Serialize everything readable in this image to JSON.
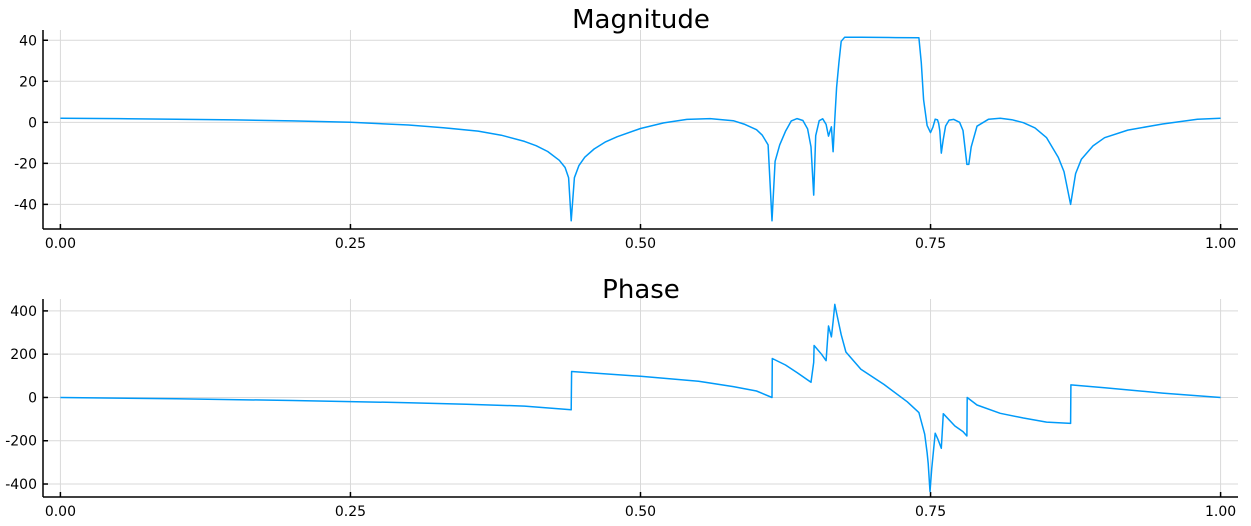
{
  "colors": {
    "trace": "#009af9",
    "grid": "#d9d9d9",
    "axis": "#000000"
  },
  "chart_data": [
    {
      "type": "line",
      "title": "Magnitude",
      "xlabel": "",
      "ylabel": "",
      "xlim": [
        -0.015,
        1.015
      ],
      "ylim": [
        -52,
        45
      ],
      "xticks": [
        0,
        0.25,
        0.5,
        0.75,
        1
      ],
      "xtick_labels": [
        "0.00",
        "0.25",
        "0.50",
        "0.75",
        "1.00"
      ],
      "yticks": [
        -40,
        -20,
        0,
        20,
        40
      ],
      "ytick_labels": [
        "-40",
        "-20",
        "0",
        "20",
        "40"
      ],
      "grid": true,
      "x": [
        0,
        0.05,
        0.1,
        0.15,
        0.2,
        0.25,
        0.3,
        0.33,
        0.36,
        0.38,
        0.4,
        0.41,
        0.42,
        0.43,
        0.435,
        0.438,
        0.4403,
        0.443,
        0.447,
        0.452,
        0.46,
        0.47,
        0.48,
        0.5,
        0.52,
        0.54,
        0.56,
        0.58,
        0.59,
        0.6,
        0.605,
        0.61,
        0.6133,
        0.616,
        0.62,
        0.625,
        0.63,
        0.635,
        0.64,
        0.644,
        0.647,
        0.6493,
        0.651,
        0.654,
        0.657,
        0.66,
        0.662,
        0.6645,
        0.666,
        0.6675,
        0.669,
        0.671,
        0.673,
        0.676,
        0.69,
        0.72,
        0.74,
        0.742,
        0.744,
        0.747,
        0.75,
        0.752,
        0.754,
        0.756,
        0.757,
        0.758,
        0.7593,
        0.761,
        0.763,
        0.766,
        0.77,
        0.775,
        0.778,
        0.7813,
        0.783,
        0.785,
        0.79,
        0.8,
        0.81,
        0.82,
        0.83,
        0.84,
        0.85,
        0.86,
        0.865,
        0.8707,
        0.875,
        0.88,
        0.89,
        0.9,
        0.92,
        0.95,
        0.98,
        1.0
      ],
      "series": [
        {
          "values": [
            2,
            1.8,
            1.5,
            1.2,
            0.7,
            0,
            -1.3,
            -2.6,
            -4.3,
            -6.3,
            -9.3,
            -11.4,
            -14.2,
            -18.5,
            -22,
            -27,
            -48,
            -27,
            -21,
            -17,
            -13,
            -9.5,
            -7,
            -3,
            -0.3,
            1.4,
            1.8,
            0.8,
            -1,
            -3.6,
            -6.3,
            -11,
            -48,
            -19,
            -11,
            -4.4,
            0.7,
            1.8,
            0.9,
            -3.2,
            -12,
            -35.5,
            -6.5,
            0.8,
            1.7,
            -1,
            -6.7,
            -2.2,
            -14.3,
            1.5,
            17,
            29,
            39.5,
            41.5,
            41.5,
            41.3,
            41.2,
            29,
            11,
            -1.5,
            -5,
            -2.4,
            1.5,
            1.2,
            -0.6,
            -4.2,
            -15,
            -8.2,
            -1.8,
            1.1,
            1.4,
            0,
            -4,
            -20.5,
            -20.5,
            -12,
            -1.9,
            1.5,
            2,
            1.3,
            -0.2,
            -2.7,
            -7.5,
            -17,
            -24,
            -40,
            -25,
            -18,
            -11.5,
            -7.5,
            -3.8,
            -0.8,
            1.5,
            2
          ]
        }
      ]
    },
    {
      "type": "line",
      "title": "Phase",
      "xlabel": "",
      "ylabel": "",
      "xlim": [
        -0.015,
        1.015
      ],
      "ylim": [
        -460,
        455
      ],
      "xticks": [
        0,
        0.25,
        0.5,
        0.75,
        1
      ],
      "xtick_labels": [
        "0.00",
        "0.25",
        "0.50",
        "0.75",
        "1.00"
      ],
      "yticks": [
        -400,
        -200,
        0,
        200,
        400
      ],
      "ytick_labels": [
        "-400",
        "-200",
        "0",
        "200",
        "400"
      ],
      "grid": true,
      "x": [
        0,
        0.1,
        0.2,
        0.3,
        0.35,
        0.4,
        0.4403,
        0.4406,
        0.5,
        0.55,
        0.58,
        0.6,
        0.6133,
        0.6136,
        0.625,
        0.635,
        0.647,
        0.6493,
        0.6496,
        0.656,
        0.66,
        0.662,
        0.6645,
        0.666,
        0.6675,
        0.669,
        0.673,
        0.677,
        0.69,
        0.71,
        0.73,
        0.74,
        0.745,
        0.747,
        0.748,
        0.7495,
        0.751,
        0.754,
        0.7565,
        0.7593,
        0.761,
        0.771,
        0.778,
        0.7813,
        0.7816,
        0.79,
        0.81,
        0.83,
        0.85,
        0.8707,
        0.871,
        0.9,
        0.95,
        1.0
      ],
      "series": [
        {
          "values": [
            0,
            -6,
            -14,
            -24,
            -31,
            -40,
            -57,
            120,
            98,
            75,
            50,
            30,
            0,
            180,
            150,
            115,
            70,
            162,
            240,
            200,
            170,
            330,
            280,
            350,
            430,
            390,
            290,
            210,
            130,
            60,
            -20,
            -70,
            -170,
            -255,
            -305,
            -435,
            -330,
            -165,
            -195,
            -235,
            -75,
            -132,
            -158,
            -178,
            0,
            -35,
            -73,
            -95,
            -114,
            -120,
            58,
            45,
            20,
            0
          ]
        }
      ]
    }
  ]
}
